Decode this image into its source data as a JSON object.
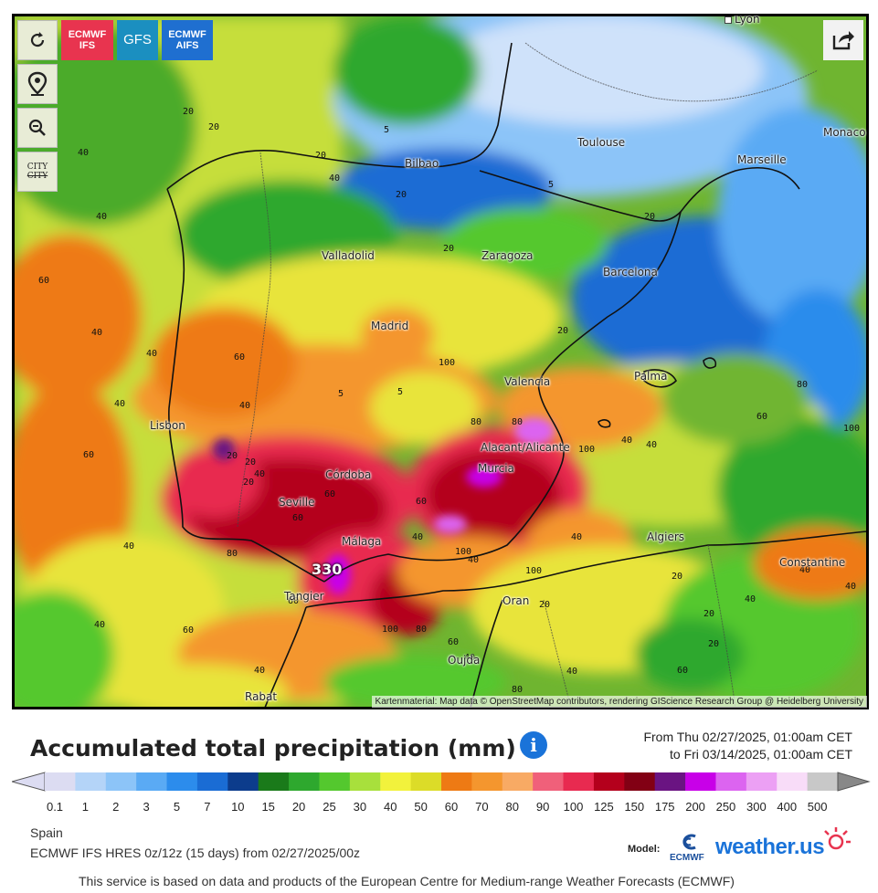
{
  "buttons": {
    "refresh_icon": "refresh-icon",
    "location_icon": "map-pin-icon",
    "zoom_icon": "zoom-out-icon",
    "cities_toggle": "CITY",
    "cities_toggle_strike": "CITY",
    "share_icon": "share-icon"
  },
  "models": [
    {
      "label_line1": "ECMWF",
      "label_line2": "IFS",
      "color": "#e8344f"
    },
    {
      "label_line1": "GFS",
      "label_line2": "",
      "color": "#1b8fc0"
    },
    {
      "label_line1": "ECMWF",
      "label_line2": "AIFS",
      "color": "#1f6fd0"
    }
  ],
  "map": {
    "attribution": "Kartenmaterial: Map data © OpenStreetMap contributors, rendering GIScience Research Group @ Heidelberg University",
    "max_value_label": "330",
    "cities": [
      {
        "name": "Lyon"
      },
      {
        "name": "Toulouse"
      },
      {
        "name": "Monaco"
      },
      {
        "name": "Marseille"
      },
      {
        "name": "Bilbao"
      },
      {
        "name": "Valladolid"
      },
      {
        "name": "Zaragoza"
      },
      {
        "name": "Barcelona"
      },
      {
        "name": "Madrid"
      },
      {
        "name": "Palma"
      },
      {
        "name": "Valencia"
      },
      {
        "name": "Lisbon"
      },
      {
        "name": "Alacant/Alicante"
      },
      {
        "name": "Córdoba"
      },
      {
        "name": "Murcia"
      },
      {
        "name": "Seville"
      },
      {
        "name": "Málaga"
      },
      {
        "name": "Algiers"
      },
      {
        "name": "Constantine"
      },
      {
        "name": "Tangier"
      },
      {
        "name": "Oran"
      },
      {
        "name": "Oujda"
      },
      {
        "name": "Rabat"
      }
    ],
    "contour_labels": [
      "20",
      "20",
      "40",
      "5",
      "20",
      "40",
      "20",
      "20",
      "40",
      "5",
      "20",
      "20",
      "60",
      "40",
      "40",
      "40",
      "60",
      "40",
      "5",
      "5",
      "60",
      "40",
      "20",
      "20",
      "20",
      "40",
      "60",
      "60",
      "80",
      "100",
      "100",
      "80",
      "80",
      "100",
      "40",
      "40",
      "60",
      "80",
      "100",
      "100",
      "60",
      "40",
      "40",
      "40",
      "60",
      "20",
      "20",
      "40",
      "40",
      "100",
      "80",
      "60",
      "40",
      "20",
      "40",
      "40",
      "20",
      "60",
      "40",
      "40",
      "80",
      "60"
    ]
  },
  "title": "Accumulated total precipitation (mm)",
  "info_icon": "i",
  "period": {
    "from": "From Thu 02/27/2025, 01:00am CET",
    "to": "to Fri 03/14/2025, 01:00am CET"
  },
  "legend": {
    "ticks": [
      "0.1",
      "1",
      "2",
      "3",
      "5",
      "7",
      "10",
      "15",
      "20",
      "25",
      "30",
      "40",
      "50",
      "60",
      "70",
      "80",
      "90",
      "100",
      "125",
      "150",
      "175",
      "200",
      "250",
      "300",
      "400",
      "500"
    ],
    "colors": [
      "#dcdcf2",
      "#b4d4f8",
      "#8cc4f8",
      "#5aaaf4",
      "#2c8cec",
      "#1a6cd4",
      "#0c3c8c",
      "#1a7a1a",
      "#2ea82e",
      "#54c82e",
      "#a8e03c",
      "#f2f23c",
      "#dcdc28",
      "#ee7a14",
      "#f4962e",
      "#f8aa64",
      "#f0607a",
      "#e82a50",
      "#b4001c",
      "#820014",
      "#6a1482",
      "#c800e8",
      "#dc64f0",
      "#eca0f4",
      "#f8dcf8",
      "#c8c8c8"
    ]
  },
  "meta": {
    "region": "Spain",
    "run": "ECMWF IFS HRES 0z/12z (15 days) from 02/27/2025/00z"
  },
  "footer": "This service is based on data and products of the European Centre for Medium-range Weather Forecasts (ECMWF)",
  "logo": {
    "model_label": "Model:",
    "ecmwf": "ECMWF",
    "brand": "weather.us"
  }
}
